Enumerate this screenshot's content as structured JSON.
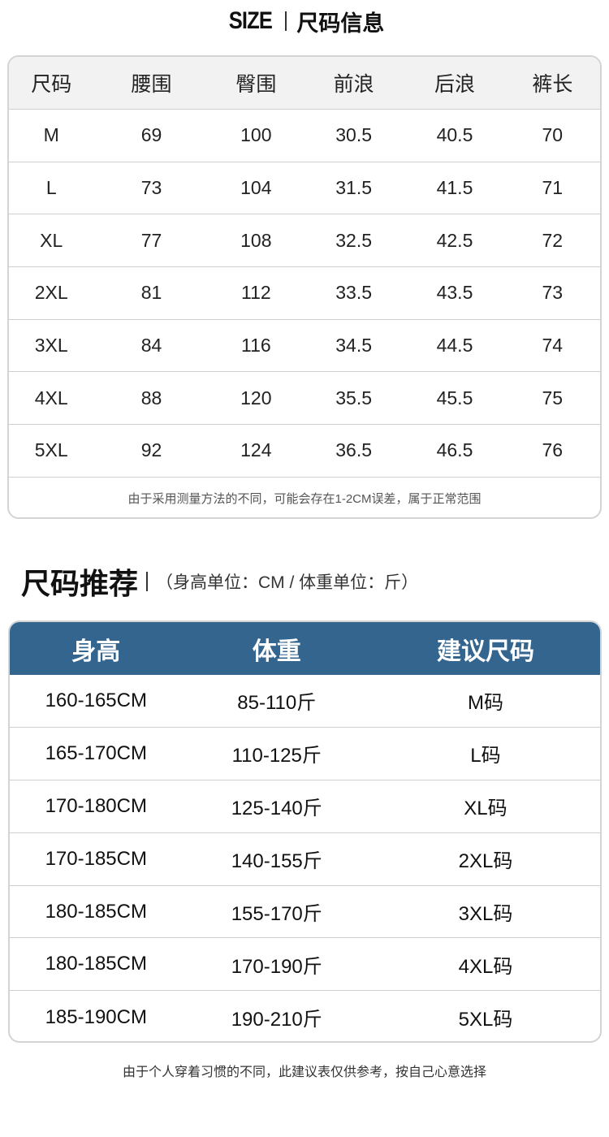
{
  "size_info": {
    "title_en": "SIZE",
    "title_cn": "尺码信息",
    "headers": [
      "尺码",
      "腰围",
      "臀围",
      "前浪",
      "后浪",
      "裤长"
    ],
    "rows": [
      [
        "M",
        "69",
        "100",
        "30.5",
        "40.5",
        "70"
      ],
      [
        "L",
        "73",
        "104",
        "31.5",
        "41.5",
        "71"
      ],
      [
        "XL",
        "77",
        "108",
        "32.5",
        "42.5",
        "72"
      ],
      [
        "2XL",
        "81",
        "112",
        "33.5",
        "43.5",
        "73"
      ],
      [
        "3XL",
        "84",
        "116",
        "34.5",
        "44.5",
        "74"
      ],
      [
        "4XL",
        "88",
        "120",
        "35.5",
        "45.5",
        "75"
      ],
      [
        "5XL",
        "92",
        "124",
        "36.5",
        "46.5",
        "76"
      ]
    ],
    "note": "由于采用测量方法的不同，可能会存在1-2CM误差，属于正常范围"
  },
  "recommend": {
    "title": "尺码推荐",
    "subtitle": "（身高单位：CM / 体重单位：斤）",
    "header_color": "#34658f",
    "headers": [
      "身高",
      "体重",
      "建议尺码"
    ],
    "rows": [
      [
        "160-165CM",
        "85-110斤",
        "M码"
      ],
      [
        "165-170CM",
        "110-125斤",
        "L码"
      ],
      [
        "170-180CM",
        "125-140斤",
        "XL码"
      ],
      [
        "170-185CM",
        "140-155斤",
        "2XL码"
      ],
      [
        "180-185CM",
        "155-170斤",
        "3XL码"
      ],
      [
        "180-185CM",
        "170-190斤",
        "4XL码"
      ],
      [
        "185-190CM",
        "190-210斤",
        "5XL码"
      ]
    ],
    "note": "由于个人穿着习惯的不同，此建议表仅供参考，按自己心意选择"
  }
}
